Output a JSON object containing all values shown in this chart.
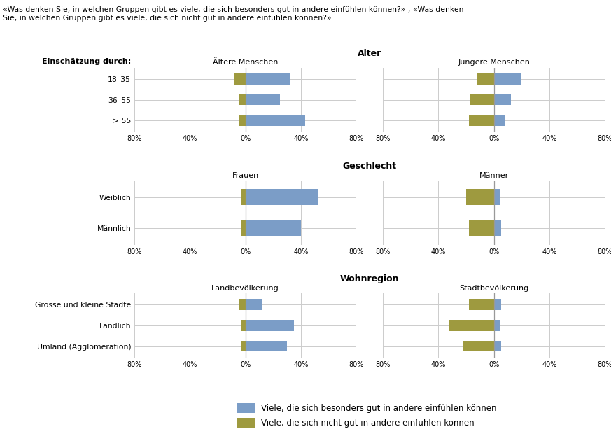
{
  "question": "«Was denken Sie, in welchen Gruppen gibt es viele, die sich besonders gut in andere einfühlen können?» ; «Was denken\nSie, in welchen Gruppen gibt es viele, die sich nicht gut in andere einfühlen können?»",
  "color_gut": "#7b9dc7",
  "color_nicht_gut": "#9e9a3f",
  "legend_gut": "Viele, die sich besonders gut in andere einfühlen können",
  "legend_nicht_gut": "Viele, die sich nicht gut in andere einfühlen können",
  "sections": [
    {
      "title": "Alter",
      "ylabel": "Einschätzung durch:",
      "groups": [
        {
          "label": "Ältere Menschen",
          "rows": [
            "18–35",
            "36–55",
            "> 55"
          ],
          "gut": [
            32,
            25,
            43
          ],
          "nicht_gut": [
            8,
            5,
            5
          ]
        },
        {
          "label": "Jüngere Menschen",
          "rows": [
            "18–35",
            "36–55",
            "> 55"
          ],
          "gut": [
            20,
            12,
            8
          ],
          "nicht_gut": [
            12,
            17,
            18
          ]
        }
      ]
    },
    {
      "title": "Geschlecht",
      "ylabel": "",
      "groups": [
        {
          "label": "Frauen",
          "rows": [
            "Weiblich",
            "Männlich"
          ],
          "gut": [
            52,
            40
          ],
          "nicht_gut": [
            3,
            3
          ]
        },
        {
          "label": "Männer",
          "rows": [
            "Weiblich",
            "Männlich"
          ],
          "gut": [
            4,
            5
          ],
          "nicht_gut": [
            20,
            18
          ]
        }
      ]
    },
    {
      "title": "Wohnregion",
      "ylabel": "",
      "groups": [
        {
          "label": "Landbevölkerung",
          "rows": [
            "Grosse und kleine Städte",
            "Ländlich",
            "Umland (Agglomeration)"
          ],
          "gut": [
            12,
            35,
            30
          ],
          "nicht_gut": [
            5,
            3,
            3
          ]
        },
        {
          "label": "Stadtbevölkerung",
          "rows": [
            "Grosse und kleine Städte",
            "Ländlich",
            "Umland (Agglomeration)"
          ],
          "gut": [
            5,
            4,
            5
          ],
          "nicht_gut": [
            18,
            32,
            22
          ]
        }
      ]
    }
  ],
  "xlim": 80,
  "background_color": "#ffffff",
  "grid_color": "#cccccc"
}
